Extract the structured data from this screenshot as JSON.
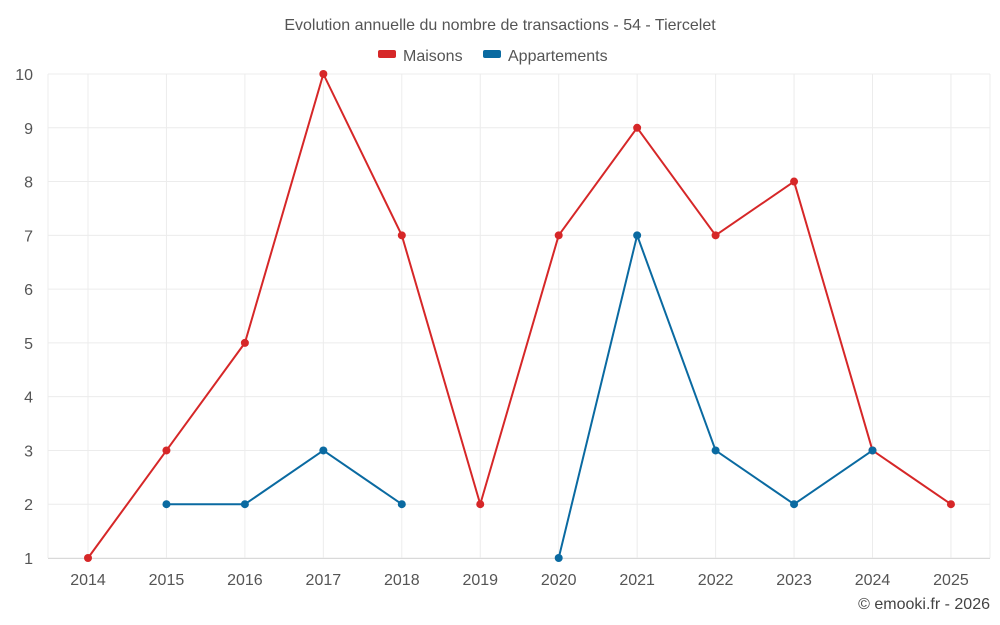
{
  "chart_data": {
    "type": "line",
    "title": "Evolution annuelle du nombre de transactions - 54 - Tiercelet",
    "categories": [
      "2014",
      "2015",
      "2016",
      "2017",
      "2018",
      "2019",
      "2020",
      "2021",
      "2022",
      "2023",
      "2024",
      "2025"
    ],
    "ylim": [
      1,
      10
    ],
    "yticks": [
      1,
      2,
      3,
      4,
      5,
      6,
      7,
      8,
      9,
      10
    ],
    "grid": true,
    "legend_position": "top-center",
    "series": [
      {
        "name": "Maisons",
        "color": "#d62728",
        "values": [
          1,
          3,
          5,
          10,
          7,
          2,
          7,
          9,
          7,
          8,
          3,
          2
        ]
      },
      {
        "name": "Appartements",
        "color": "#0a6aa1",
        "values": [
          null,
          2,
          2,
          3,
          2,
          null,
          1,
          7,
          3,
          2,
          3,
          null
        ]
      }
    ],
    "credit": "© emooki.fr - 2026"
  }
}
